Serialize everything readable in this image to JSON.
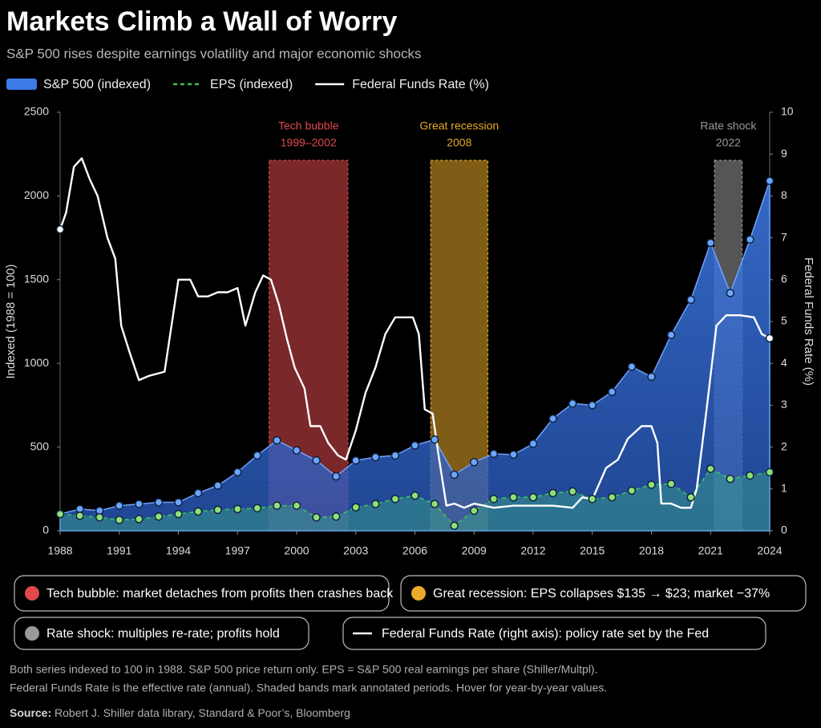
{
  "chart_data": {
    "type": "line",
    "title": "Markets Climb a Wall of Worry",
    "subtitle": "S&P 500 rises despite earnings volatility and major economic shocks",
    "ylabel": "Indexed (1988 = 100)",
    "y2label": "Federal Funds Rate (%)",
    "x": [
      1988,
      1989,
      1990,
      1991,
      1992,
      1993,
      1994,
      1995,
      1996,
      1997,
      1998,
      1999,
      2000,
      2001,
      2002,
      2003,
      2004,
      2005,
      2006,
      2007,
      2008,
      2009,
      2010,
      2011,
      2012,
      2013,
      2014,
      2015,
      2016,
      2017,
      2018,
      2019,
      2020,
      2021,
      2022,
      2023,
      2024
    ],
    "series": [
      {
        "name": "S&P 500 (indexed)",
        "type": "area",
        "color": "#3d7be8",
        "values": [
          100,
          130,
          120,
          150,
          160,
          170,
          170,
          225,
          270,
          350,
          450,
          540,
          480,
          420,
          325,
          420,
          440,
          450,
          510,
          545,
          335,
          410,
          460,
          455,
          520,
          670,
          760,
          750,
          830,
          980,
          920,
          1170,
          1380,
          1720,
          1420,
          1740,
          2090
        ]
      },
      {
        "name": "EPS (indexed)",
        "type": "dashed",
        "color": "#3cc25a",
        "values": [
          100,
          90,
          80,
          65,
          70,
          85,
          100,
          115,
          125,
          130,
          135,
          150,
          150,
          80,
          85,
          140,
          160,
          190,
          210,
          160,
          30,
          120,
          190,
          200,
          200,
          225,
          235,
          190,
          200,
          240,
          275,
          280,
          200,
          370,
          310,
          330,
          350
        ]
      },
      {
        "name": "Federal Funds Rate (%)",
        "type": "line",
        "color": "#ffffff",
        "axis": "y2",
        "x": [
          1988,
          1988.3,
          1988.7,
          1989.1,
          1989.5,
          1989.9,
          1990.4,
          1990.8,
          1991.1,
          1991.5,
          1992,
          1992.5,
          1993.3,
          1994,
          1994.6,
          1995,
          1995.5,
          1996,
          1996.5,
          1997,
          1997.4,
          1997.9,
          1998.3,
          1998.7,
          1999.1,
          1999.5,
          1999.9,
          2000.4,
          2000.7,
          2001.2,
          2001.6,
          2002.1,
          2002.5,
          2003,
          2003.5,
          2004,
          2004.5,
          2005,
          2005.5,
          2005.9,
          2006.2,
          2006.5,
          2006.9,
          2007.2,
          2007.6,
          2008,
          2008.5,
          2009,
          2010,
          2011,
          2012,
          2013,
          2014,
          2014.5,
          2015,
          2015.7,
          2016.3,
          2016.8,
          2017.5,
          2018,
          2018.3,
          2018.5,
          2019,
          2019.5,
          2020,
          2020.3,
          2020.8,
          2021.3,
          2021.8,
          2022.5,
          2023.2,
          2023.6,
          2024
        ],
        "values": [
          7.2,
          7.6,
          8.7,
          8.9,
          8.4,
          8.0,
          7.0,
          6.5,
          4.9,
          4.3,
          3.6,
          3.7,
          3.8,
          6.0,
          6.0,
          5.6,
          5.6,
          5.7,
          5.7,
          5.8,
          4.9,
          5.7,
          6.1,
          6.0,
          5.4,
          4.6,
          3.9,
          3.4,
          2.5,
          2.5,
          2.1,
          1.8,
          1.7,
          2.4,
          3.3,
          3.9,
          4.7,
          5.1,
          5.1,
          5.1,
          4.7,
          2.9,
          2.8,
          1.8,
          0.6,
          0.65,
          0.55,
          0.65,
          0.55,
          0.6,
          0.6,
          0.6,
          0.55,
          0.8,
          0.75,
          1.5,
          1.7,
          2.2,
          2.5,
          2.5,
          2.1,
          0.65,
          0.65,
          0.55,
          0.55,
          1.0,
          2.9,
          4.9,
          5.15,
          5.15,
          5.1,
          4.7,
          4.6
        ]
      }
    ],
    "xlim": [
      1988,
      2024
    ],
    "xticks": [
      1988,
      1991,
      1994,
      1997,
      2000,
      2003,
      2006,
      2009,
      2012,
      2015,
      2018,
      2021,
      2024
    ],
    "ylim": [
      0,
      2500
    ],
    "yticks": [
      0,
      500,
      1000,
      1500,
      2000,
      2500
    ],
    "y2lim": [
      0,
      10
    ],
    "y2ticks": [
      0,
      1,
      2,
      3,
      4,
      5,
      6,
      7,
      8,
      9,
      10
    ],
    "annotations": [
      {
        "label": [
          "Tech bubble",
          "1999–2002"
        ],
        "color": "#e0484d",
        "x_start": 1998.6,
        "x_end": 2002.6
      },
      {
        "label": [
          "Great recession",
          "2008"
        ],
        "color": "#e9a92a",
        "x_start": 2006.8,
        "x_end": 2009.7
      },
      {
        "label": [
          "Rate shock",
          "2022"
        ],
        "color": "#9a9a9a",
        "x_start": 2021.2,
        "x_end": 2022.6
      }
    ]
  },
  "callouts": [
    {
      "text": "Tech bubble: market detaches from profits then crashes back",
      "color": "#e0484d",
      "marker": "dot"
    },
    {
      "text": "Great recession: EPS collapses $135 → $23; market −37%",
      "color": "#e9a92a",
      "marker": "dot"
    },
    {
      "text": "Rate shock: multiples re-rate; profits hold",
      "color": "#9a9a9a",
      "marker": "dot"
    },
    {
      "text": "Federal Funds Rate (right axis): policy rate set by the Fed",
      "color": "#ffffff",
      "marker": "line"
    }
  ],
  "notes": [
    "Both series indexed to 100 in 1988. S&P 500 price return only. EPS = S&P 500 real earnings per share (Shiller/Multpl).",
    "Federal Funds Rate is the effective rate (annual). Shaded bands mark annotated periods. Hover for year-by-year values."
  ],
  "source": {
    "label": "Source:",
    "text": "Robert J. Shiller data library, Standard & Poor’s, Bloomberg"
  }
}
